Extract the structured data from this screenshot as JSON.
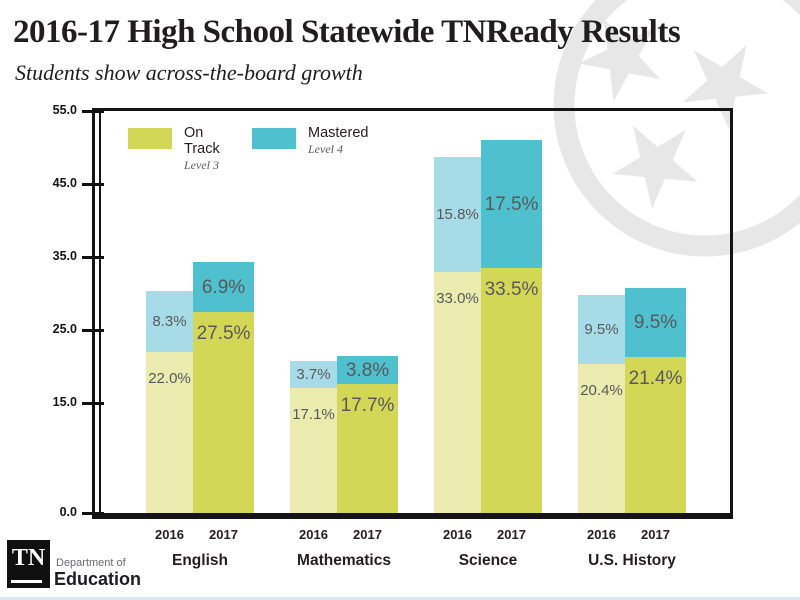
{
  "page": {
    "title": "2016-17 High School Statewide TNReady Results",
    "subtitle": "Students show across-the-board growth"
  },
  "legend": {
    "items": [
      {
        "label": "On Track",
        "sublabel": "Level 3",
        "color": "#d2d755"
      },
      {
        "label": "Mastered",
        "sublabel": "Level 4",
        "color": "#4fc0ce"
      }
    ]
  },
  "chart_data": {
    "type": "bar",
    "variant": "grouped-stacked",
    "title": "2016-17 High School Statewide TNReady Results",
    "subtitle": "Students show across-the-board growth",
    "categories": [
      "English",
      "Mathematics",
      "Science",
      "U.S. History"
    ],
    "group_keys": [
      "2016",
      "2017"
    ],
    "ylim": [
      0,
      55
    ],
    "ytick_labels": [
      "55.0",
      "45.0",
      "35.0",
      "25.0",
      "15.0",
      "0.0"
    ],
    "ytick_values": [
      55,
      45,
      35,
      25,
      15,
      0
    ],
    "grid": false,
    "legend_position": "top-left-inside",
    "value_label_format": "{value}%",
    "series": [
      {
        "name": "On Track",
        "level": "Level 3",
        "values_2016": [
          22.0,
          17.1,
          33.0,
          20.4
        ],
        "values_2017": [
          27.5,
          17.7,
          33.5,
          21.4
        ],
        "color_2016": "#e9ecae",
        "color_2017": "#d2d755"
      },
      {
        "name": "Mastered",
        "level": "Level 4",
        "values_2016": [
          8.3,
          3.7,
          15.8,
          9.5
        ],
        "values_2017": [
          6.9,
          3.8,
          17.5,
          9.5
        ],
        "color_2016": "#a7dbe8",
        "color_2017": "#4fc0ce"
      }
    ]
  },
  "footer": {
    "logo_tn": "TN",
    "dept_line1": "Department of",
    "dept_line2": "Education"
  },
  "colors": {
    "title_text": "#1f1d1e",
    "value_label_text": "#58595b",
    "axis_line": "#141414",
    "watermark": "#e7e7e7",
    "bottom_strip": "#d9e7f0"
  }
}
